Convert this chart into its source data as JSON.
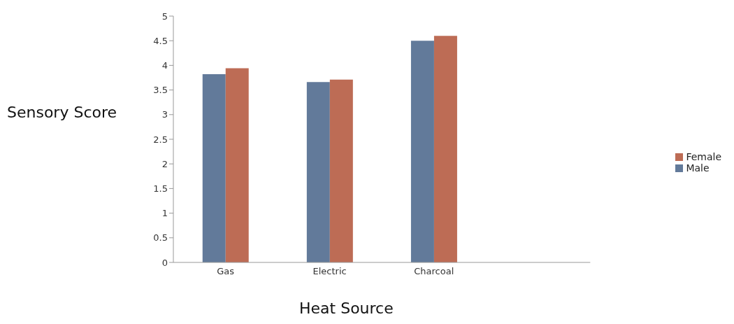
{
  "chart_data": {
    "type": "bar",
    "xlabel": "Heat Source",
    "ylabel": "Sensory Score",
    "categories": [
      "Gas",
      "Electric",
      "Charcoal",
      null
    ],
    "series": [
      {
        "name": "Male",
        "color": "#627a9a",
        "values": [
          3.82,
          3.66,
          4.5,
          null
        ]
      },
      {
        "name": "Female",
        "color": "#bd6c55",
        "values": [
          3.94,
          3.71,
          4.6,
          null
        ]
      }
    ],
    "ylim": [
      0,
      5
    ],
    "yticks": [
      0,
      0.5,
      1,
      1.5,
      2,
      2.5,
      3,
      3.5,
      4,
      4.5,
      5
    ],
    "grid": false,
    "legend": "right"
  }
}
